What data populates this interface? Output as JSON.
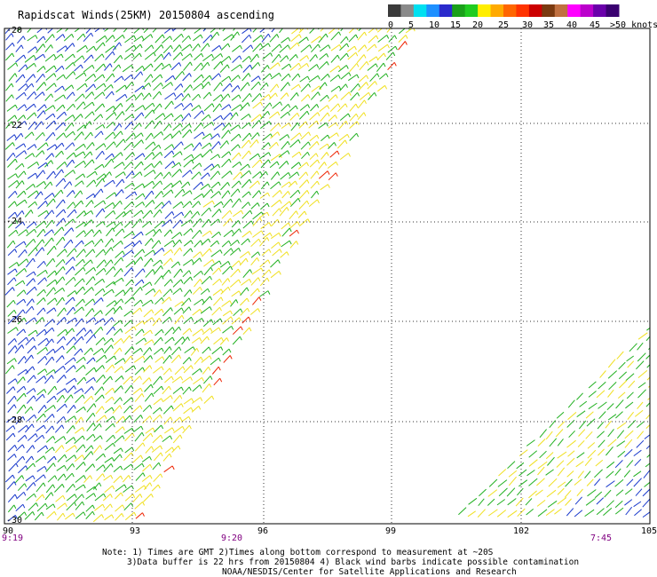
{
  "title": "Rapidscat Winds(25KM) 20150804 ascending",
  "legend": {
    "labels": [
      "0",
      "5",
      "10",
      "15",
      "20",
      "25",
      "30",
      "35",
      "40",
      "45",
      ">50 knots"
    ],
    "colors": [
      "#3a3a3a",
      "#8a8a8a",
      "#00e0f0",
      "#1e90ff",
      "#2a2acc",
      "#1aa01a",
      "#20cc20",
      "#ffee00",
      "#ffaa00",
      "#ff6600",
      "#ff3300",
      "#cc0000",
      "#7a3a10",
      "#c07040",
      "#ff00ff",
      "#bb00cc",
      "#6a00aa",
      "#3a0070"
    ]
  },
  "axes": {
    "lat_labels": [
      "-20",
      "-22",
      "-24",
      "-26",
      "-28",
      "-30"
    ],
    "lon_labels": [
      "90",
      "93",
      "96",
      "99",
      "102",
      "105"
    ]
  },
  "time_labels": [
    "9:19",
    "9:20",
    "7:45"
  ],
  "notes": [
    "Note: 1) Times are GMT 2)Times along bottom correspond to measurement at ~20S",
    "3)Data buffer is 22 hrs from 20150804 4) Black wind barbs indicate possible contamination",
    "NOAA/NESDIS/Center for Satellite Applications and Research"
  ],
  "colors": {
    "grid": "#333333",
    "time_label": "#800080",
    "text": "#000000",
    "blue_barb": "#1a3acc",
    "green_barb": "#20b020",
    "yellow_barb": "#f0e020",
    "red_barb": "#ee2200"
  }
}
